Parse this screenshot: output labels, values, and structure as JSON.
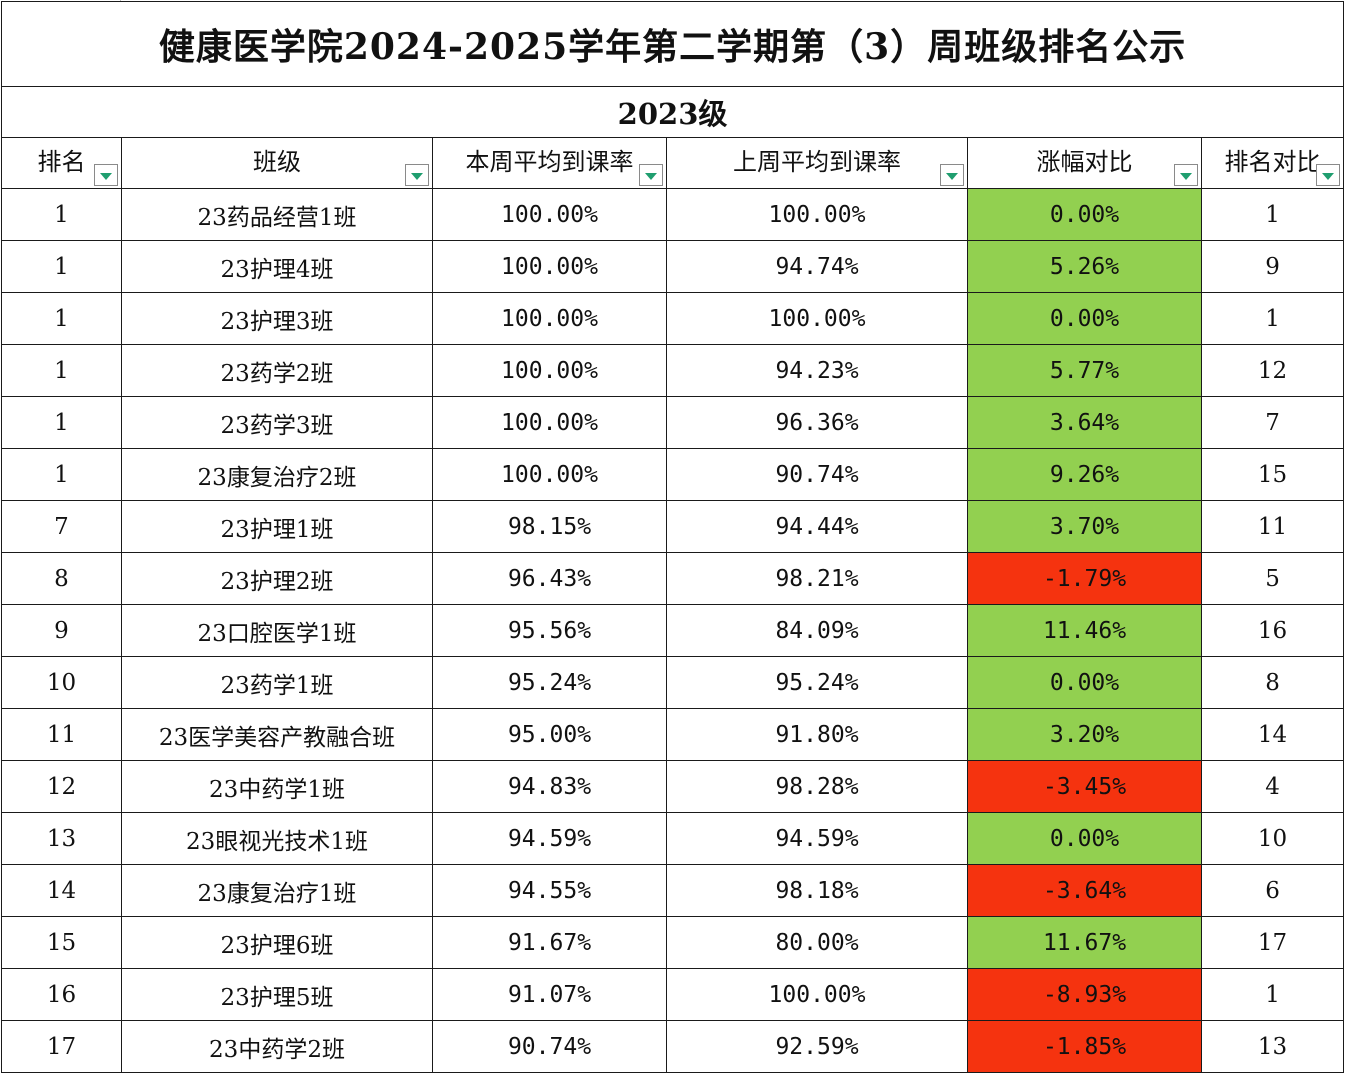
{
  "title": "健康医学院2024-2025学年第二学期第（3）周班级排名公示",
  "grade": "2023级",
  "headers": {
    "rank": "排名",
    "class": "班级",
    "this_week": "本周平均到课率",
    "last_week": "上周平均到课率",
    "change": "涨幅对比",
    "rank_compare": "排名对比"
  },
  "colors": {
    "positive": "#92d050",
    "negative": "#f5330f",
    "filter_arrow": "#1f9e6f"
  },
  "rows": [
    {
      "rank": "1",
      "class": "23药品经营1班",
      "this_week": "100.00%",
      "last_week": "100.00%",
      "change": "0.00%",
      "rank_compare": "1",
      "status": "up"
    },
    {
      "rank": "1",
      "class": "23护理4班",
      "this_week": "100.00%",
      "last_week": "94.74%",
      "change": "5.26%",
      "rank_compare": "9",
      "status": "up"
    },
    {
      "rank": "1",
      "class": "23护理3班",
      "this_week": "100.00%",
      "last_week": "100.00%",
      "change": "0.00%",
      "rank_compare": "1",
      "status": "up"
    },
    {
      "rank": "1",
      "class": "23药学2班",
      "this_week": "100.00%",
      "last_week": "94.23%",
      "change": "5.77%",
      "rank_compare": "12",
      "status": "up"
    },
    {
      "rank": "1",
      "class": "23药学3班",
      "this_week": "100.00%",
      "last_week": "96.36%",
      "change": "3.64%",
      "rank_compare": "7",
      "status": "up"
    },
    {
      "rank": "1",
      "class": "23康复治疗2班",
      "this_week": "100.00%",
      "last_week": "90.74%",
      "change": "9.26%",
      "rank_compare": "15",
      "status": "up"
    },
    {
      "rank": "7",
      "class": "23护理1班",
      "this_week": "98.15%",
      "last_week": "94.44%",
      "change": "3.70%",
      "rank_compare": "11",
      "status": "up"
    },
    {
      "rank": "8",
      "class": "23护理2班",
      "this_week": "96.43%",
      "last_week": "98.21%",
      "change": "-1.79%",
      "rank_compare": "5",
      "status": "down"
    },
    {
      "rank": "9",
      "class": "23口腔医学1班",
      "this_week": "95.56%",
      "last_week": "84.09%",
      "change": "11.46%",
      "rank_compare": "16",
      "status": "up"
    },
    {
      "rank": "10",
      "class": "23药学1班",
      "this_week": "95.24%",
      "last_week": "95.24%",
      "change": "0.00%",
      "rank_compare": "8",
      "status": "up"
    },
    {
      "rank": "11",
      "class": "23医学美容产教融合班",
      "this_week": "95.00%",
      "last_week": "91.80%",
      "change": "3.20%",
      "rank_compare": "14",
      "status": "up"
    },
    {
      "rank": "12",
      "class": "23中药学1班",
      "this_week": "94.83%",
      "last_week": "98.28%",
      "change": "-3.45%",
      "rank_compare": "4",
      "status": "down"
    },
    {
      "rank": "13",
      "class": "23眼视光技术1班",
      "this_week": "94.59%",
      "last_week": "94.59%",
      "change": "0.00%",
      "rank_compare": "10",
      "status": "up"
    },
    {
      "rank": "14",
      "class": "23康复治疗1班",
      "this_week": "94.55%",
      "last_week": "98.18%",
      "change": "-3.64%",
      "rank_compare": "6",
      "status": "down"
    },
    {
      "rank": "15",
      "class": "23护理6班",
      "this_week": "91.67%",
      "last_week": "80.00%",
      "change": "11.67%",
      "rank_compare": "17",
      "status": "up"
    },
    {
      "rank": "16",
      "class": "23护理5班",
      "this_week": "91.07%",
      "last_week": "100.00%",
      "change": "-8.93%",
      "rank_compare": "1",
      "status": "down"
    },
    {
      "rank": "17",
      "class": "23中药学2班",
      "this_week": "90.74%",
      "last_week": "92.59%",
      "change": "-1.85%",
      "rank_compare": "13",
      "status": "down"
    }
  ]
}
